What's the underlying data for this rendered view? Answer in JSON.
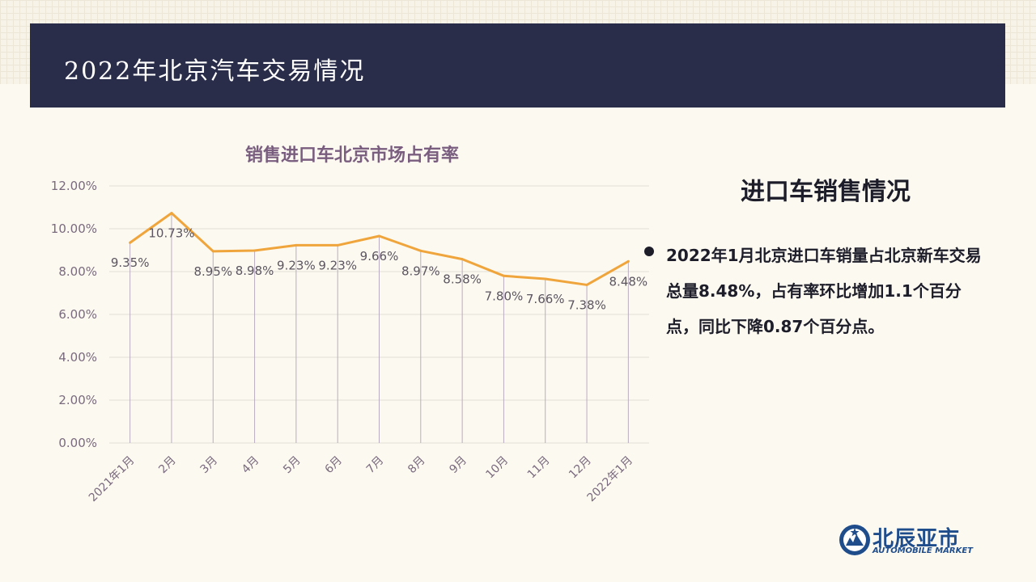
{
  "header": {
    "title": "2022年北京汽车交易情况"
  },
  "chart_data": {
    "type": "line",
    "title": "销售进口车北京市场占有率",
    "categories": [
      "2021年1月",
      "2月",
      "3月",
      "4月",
      "5月",
      "6月",
      "7月",
      "8月",
      "9月",
      "10月",
      "11月",
      "12月",
      "2022年1月"
    ],
    "values": [
      9.35,
      10.73,
      8.95,
      8.98,
      9.23,
      9.23,
      9.66,
      8.97,
      8.58,
      7.8,
      7.66,
      7.38,
      8.48
    ],
    "value_labels": [
      "9.35%",
      "10.73%",
      "8.95%",
      "8.98%",
      "9.23%",
      "9.23%",
      "9.66%",
      "8.97%",
      "8.58%",
      "7.80%",
      "7.66%",
      "7.38%",
      "8.48%"
    ],
    "y_ticks": [
      "0.00%",
      "2.00%",
      "4.00%",
      "6.00%",
      "8.00%",
      "10.00%",
      "12.00%"
    ],
    "ylim": [
      0,
      12
    ],
    "grid": true,
    "line_color": "#f0a53c"
  },
  "side": {
    "title": "进口车销售情况",
    "text": "2022年1月北京进口车销量占北京新车交易总量8.48%，占有率环比增加1.1个百分点，同比下降0.87个百分点。"
  },
  "logo": {
    "name": "北辰亚市",
    "sub": "AUTOMOBILE MARKET"
  }
}
